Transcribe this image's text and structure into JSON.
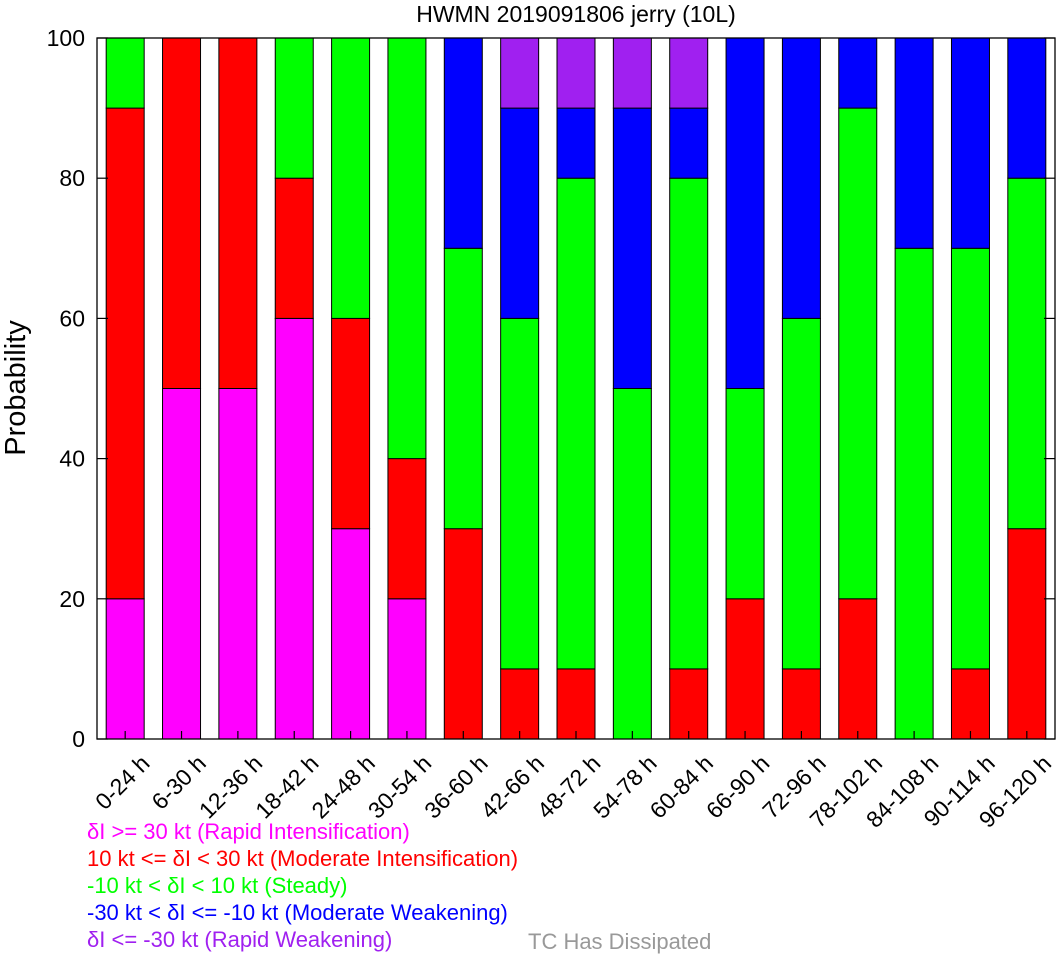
{
  "chart_data": {
    "type": "bar",
    "stacked": true,
    "title": "HWMN 2019091806 jerry (10L)",
    "xlabel": "",
    "ylabel": "Probability",
    "ylim": [
      0,
      100
    ],
    "yticks": [
      0,
      20,
      40,
      60,
      80,
      100
    ],
    "grid": false,
    "categories": [
      "0-24 h",
      "6-30 h",
      "12-36 h",
      "18-42 h",
      "24-48 h",
      "30-54 h",
      "36-60 h",
      "42-66 h",
      "48-72 h",
      "54-78 h",
      "60-84 h",
      "66-90 h",
      "72-96 h",
      "78-102 h",
      "84-108 h",
      "90-114 h",
      "96-120 h"
    ],
    "series": [
      {
        "name": "δI >= 30 kt (Rapid Intensification)",
        "color": "#ff00ff",
        "values": [
          20,
          50,
          50,
          60,
          30,
          20,
          0,
          0,
          0,
          0,
          0,
          0,
          0,
          0,
          0,
          0,
          0
        ]
      },
      {
        "name": "10 kt <= δI < 30 kt (Moderate Intensification)",
        "color": "#ff0000",
        "values": [
          70,
          50,
          50,
          20,
          30,
          20,
          30,
          10,
          10,
          0,
          10,
          20,
          10,
          20,
          0,
          10,
          30
        ]
      },
      {
        "name": "-10 kt < δI < 10 kt (Steady)",
        "color": "#00ff00",
        "values": [
          10,
          0,
          0,
          20,
          40,
          60,
          40,
          50,
          70,
          50,
          70,
          30,
          50,
          70,
          70,
          60,
          50
        ]
      },
      {
        "name": "-30 kt < δI <= -10 kt (Moderate Weakening)",
        "color": "#0000ff",
        "values": [
          0,
          0,
          0,
          0,
          0,
          0,
          30,
          30,
          10,
          40,
          10,
          50,
          40,
          10,
          30,
          30,
          20
        ]
      },
      {
        "name": "δI <= -30 kt (Rapid Weakening)",
        "color": "#a020f0",
        "values": [
          0,
          0,
          0,
          0,
          0,
          0,
          0,
          10,
          10,
          10,
          10,
          0,
          0,
          0,
          0,
          0,
          0
        ]
      }
    ],
    "dissipated": {
      "name": "TC Has Dissipated",
      "color": "#999999"
    },
    "legend_placement": "bottom-left"
  }
}
